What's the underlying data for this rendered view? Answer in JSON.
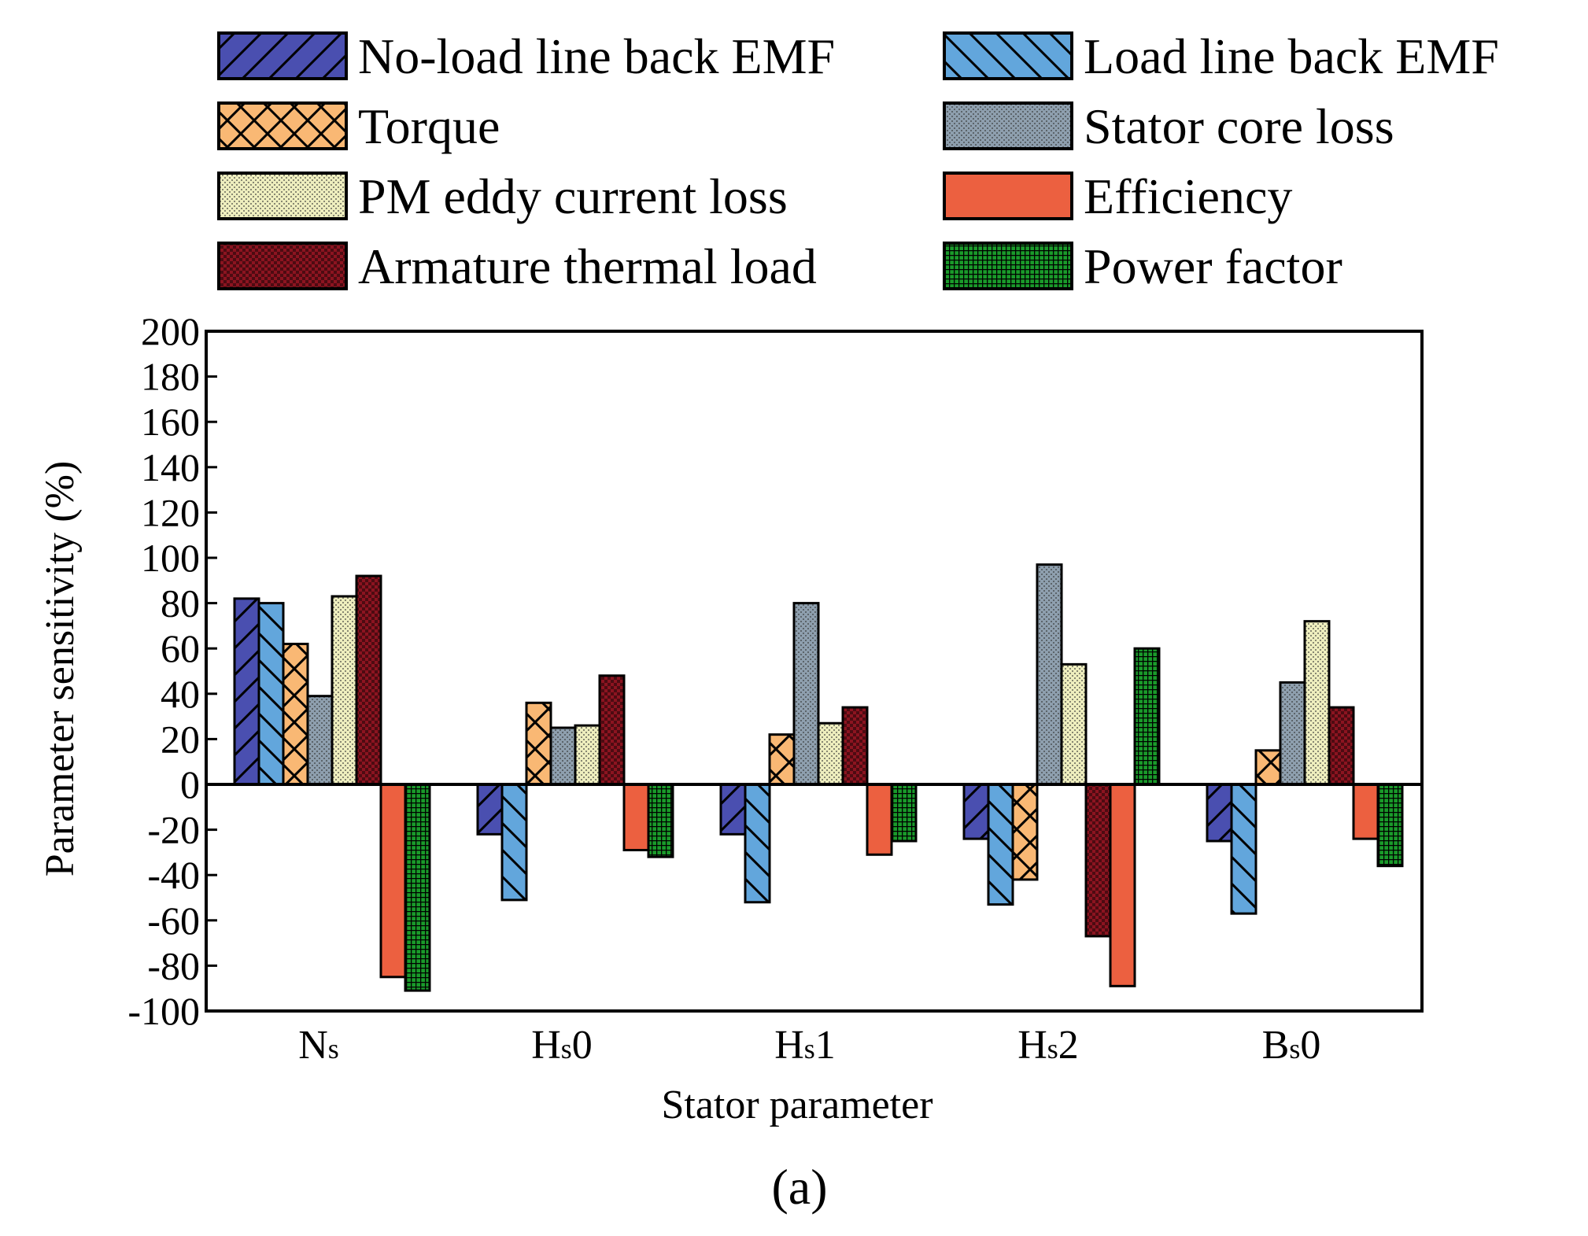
{
  "chart_data": {
    "type": "bar",
    "xlabel": "Stator parameter",
    "ylabel": "Parameter sensitivity (%)",
    "panel_label": "(a)",
    "ylim": [
      -100,
      200
    ],
    "yticks": [
      200,
      180,
      160,
      140,
      120,
      100,
      80,
      60,
      40,
      20,
      0,
      -20,
      -40,
      -60,
      -80,
      -100
    ],
    "categories": [
      {
        "main": "N",
        "sub": "s",
        "suffix": ""
      },
      {
        "main": "H",
        "sub": "s",
        "suffix": "0"
      },
      {
        "main": "H",
        "sub": "s",
        "suffix": "1"
      },
      {
        "main": "H",
        "sub": "s",
        "suffix": "2"
      },
      {
        "main": "B",
        "sub": "s",
        "suffix": "0"
      }
    ],
    "series": [
      {
        "name": "No-load line back EMF",
        "color": "#4a4fb0",
        "pattern": "fwd",
        "values": [
          82,
          -22,
          -22,
          -24,
          -25
        ]
      },
      {
        "name": "Load line back EMF",
        "color": "#62a6dc",
        "pattern": "back",
        "values": [
          80,
          -51,
          -52,
          -53,
          -57
        ]
      },
      {
        "name": "Torque",
        "color": "#f9b874",
        "pattern": "cross",
        "values": [
          62,
          36,
          22,
          -42,
          15
        ]
      },
      {
        "name": "Stator core loss",
        "color": "#8e9fae",
        "pattern": "dots",
        "values": [
          39,
          25,
          80,
          97,
          45
        ]
      },
      {
        "name": "PM eddy current loss",
        "color": "#eeeebe",
        "pattern": "dots",
        "values": [
          83,
          26,
          27,
          53,
          72
        ]
      },
      {
        "name": "Armature thermal load",
        "color": "#8c1420",
        "pattern": "check",
        "values": [
          92,
          48,
          34,
          -67,
          34
        ]
      },
      {
        "name": "Efficiency",
        "color": "#ec6040",
        "pattern": "none",
        "values": [
          -85,
          -29,
          -31,
          -89,
          -24
        ]
      },
      {
        "name": "Power factor",
        "color": "#1a9a2a",
        "pattern": "grid",
        "values": [
          -91,
          -32,
          -25,
          60,
          -36
        ]
      }
    ],
    "legend_order": [
      0,
      1,
      2,
      3,
      4,
      6,
      5,
      7
    ],
    "legend_position": "top"
  }
}
